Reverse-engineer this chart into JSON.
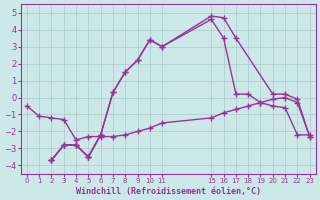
{
  "xlabel": "Windchill (Refroidissement éolien,°C)",
  "bg_color": "#cce8e8",
  "grid_color": "#aacccc",
  "line_color": "#993399",
  "marker": "+",
  "xlim": [
    -0.5,
    23.5
  ],
  "ylim": [
    -4.5,
    5.5
  ],
  "yticks": [
    -4,
    -3,
    -2,
    -1,
    0,
    1,
    2,
    3,
    4,
    5
  ],
  "xticks": [
    0,
    1,
    2,
    3,
    4,
    5,
    6,
    7,
    8,
    9,
    10,
    11,
    15,
    16,
    17,
    18,
    19,
    20,
    21,
    22,
    23
  ],
  "xtick_labels": [
    "0",
    "1",
    "2",
    "3",
    "4",
    "5",
    "6",
    "7",
    "8",
    "9",
    "10",
    "11",
    "15",
    "16",
    "17",
    "18",
    "19",
    "20",
    "21",
    "22",
    "23"
  ],
  "series": [
    {
      "x": [
        0,
        1,
        2,
        3,
        4,
        5,
        6,
        7,
        8,
        9,
        10,
        11,
        15,
        16,
        17,
        18,
        19,
        20,
        21,
        22,
        23
      ],
      "y": [
        -0.5,
        -1.1,
        -1.2,
        -1.3,
        -2.5,
        -2.3,
        -2.3,
        -2.3,
        -2.2,
        -2.0,
        -1.8,
        -1.5,
        -1.2,
        -0.9,
        -0.7,
        -0.5,
        -0.3,
        -0.1,
        0.0,
        -0.3,
        -2.3
      ]
    },
    {
      "x": [
        2,
        3,
        4,
        5,
        6,
        7,
        8,
        9,
        10,
        11,
        15,
        16,
        17,
        20,
        21,
        22,
        23
      ],
      "y": [
        -3.7,
        -2.8,
        -2.8,
        -3.5,
        -2.2,
        0.3,
        1.5,
        2.2,
        3.4,
        3.0,
        4.8,
        4.7,
        3.5,
        0.2,
        0.2,
        -0.1,
        -2.3
      ]
    },
    {
      "x": [
        2,
        3,
        4,
        5,
        6,
        7,
        8,
        9,
        10,
        11,
        15,
        16,
        17,
        18,
        19,
        20,
        21,
        22,
        23
      ],
      "y": [
        -3.7,
        -2.8,
        -2.8,
        -3.5,
        -2.2,
        0.3,
        1.5,
        2.2,
        3.4,
        3.0,
        4.6,
        3.5,
        0.2,
        0.2,
        -0.3,
        -0.5,
        -0.6,
        -2.2,
        -2.2
      ]
    },
    {
      "x": [
        2,
        3,
        4,
        5,
        6
      ],
      "y": [
        -3.7,
        -2.8,
        -2.8,
        -3.5,
        -2.2
      ]
    }
  ]
}
